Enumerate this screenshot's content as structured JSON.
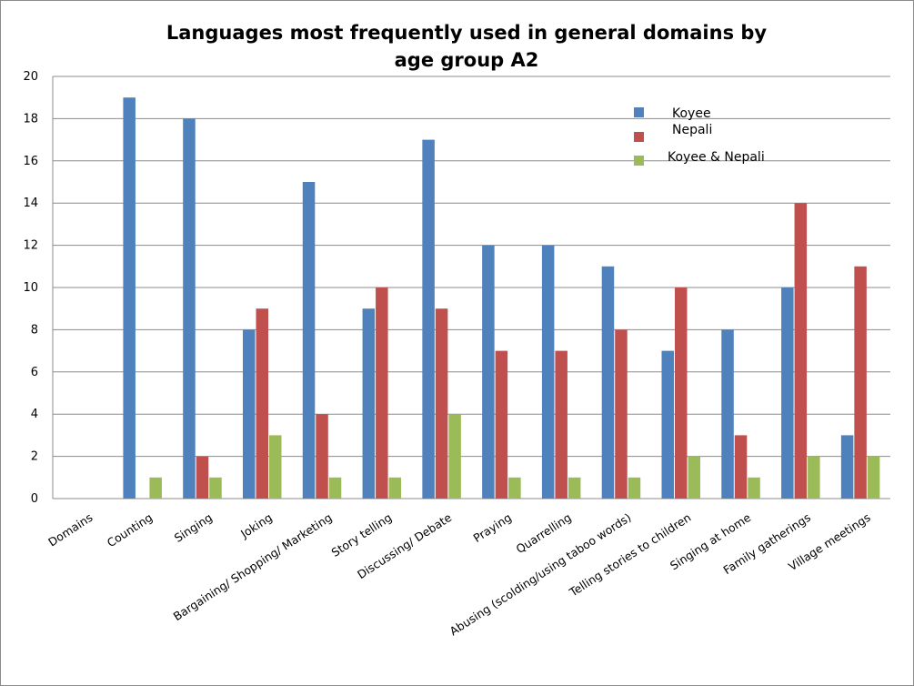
{
  "chart_data": {
    "type": "bar",
    "title_lines": [
      "Languages most frequently used in general domains by",
      "age group A2"
    ],
    "categories": [
      "Domains",
      "Counting",
      "Singing",
      "Joking",
      "Bargaining/ Shopping/ Marketing",
      "Story telling",
      "Discussing/ Debate",
      "Praying",
      "Quarrelling",
      "Abusing (scolding/using taboo words)",
      "Telling stories to children",
      "Singing at home",
      "Family gatherings",
      "Village meetings"
    ],
    "series": [
      {
        "name": "Koyee",
        "color": "#4F81BD",
        "values": [
          0,
          19,
          18,
          8,
          15,
          9,
          17,
          12,
          12,
          11,
          7,
          8,
          10,
          3
        ]
      },
      {
        "name": "Nepali",
        "color": "#C0504D",
        "values": [
          0,
          0,
          2,
          9,
          4,
          10,
          9,
          7,
          7,
          8,
          10,
          3,
          14,
          11
        ]
      },
      {
        "name": "Koyee & Nepali",
        "color": "#9BBB59",
        "values": [
          0,
          1,
          1,
          3,
          1,
          1,
          4,
          1,
          1,
          1,
          2,
          1,
          2,
          2
        ]
      }
    ],
    "ylim": [
      0,
      20
    ],
    "yticks": [
      0,
      2,
      4,
      6,
      8,
      10,
      12,
      14,
      16,
      18,
      20
    ],
    "xlabel": "",
    "ylabel": "",
    "grid": true,
    "legend_position": "top-right"
  }
}
